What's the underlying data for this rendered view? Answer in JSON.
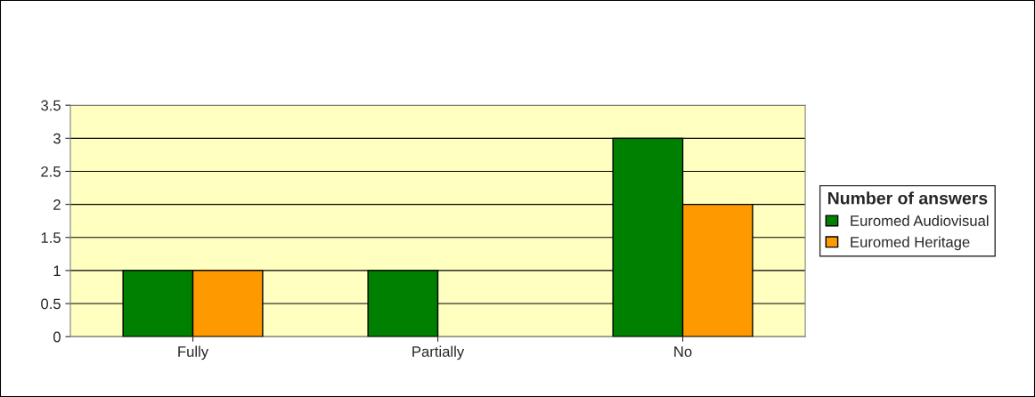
{
  "chart_data": {
    "type": "bar",
    "categories": [
      "Fully",
      "Partially",
      "No"
    ],
    "series": [
      {
        "name": "Euromed Audiovisual",
        "color": "#008000",
        "values": [
          1,
          1,
          3
        ]
      },
      {
        "name": "Euromed Heritage",
        "color": "#ff9900",
        "values": [
          1,
          null,
          2
        ]
      }
    ],
    "legend_title": "Number of answers",
    "legend": "right",
    "ylim": [
      0,
      3.5
    ],
    "yticks": [
      0,
      0.5,
      1,
      1.5,
      2,
      2.5,
      3,
      3.5
    ],
    "grid": "y"
  }
}
